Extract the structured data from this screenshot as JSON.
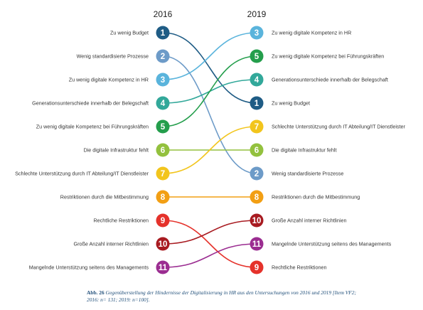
{
  "chart_data": {
    "type": "slope",
    "x": [
      "2016",
      "2019"
    ],
    "colors": {
      "1": "#1f5c85",
      "2": "#6d9bc8",
      "3": "#5ab4dc",
      "4": "#32a89a",
      "5": "#249e4c",
      "6": "#93c13e",
      "7": "#f2c51d",
      "8": "#f29f14",
      "9": "#e5322b",
      "10": "#a81b21",
      "11": "#9b2d91"
    },
    "items": [
      {
        "label": "Zu wenig Budget",
        "rank_2016": 1,
        "rank_2019": 4,
        "color_key": "1"
      },
      {
        "label": "Wenig standardisierte Prozesse",
        "rank_2016": 2,
        "rank_2019": 7,
        "color_key": "2"
      },
      {
        "label": "Zu wenig digitale Kompetenz in HR",
        "rank_2016": 3,
        "rank_2019": 1,
        "color_key": "3"
      },
      {
        "label": "Generationsunterschiede innerhalb der Belegschaft",
        "rank_2016": 4,
        "rank_2019": 3,
        "color_key": "4"
      },
      {
        "label": "Zu wenig digitale Kompetenz bei Führungskräften",
        "rank_2016": 5,
        "rank_2019": 2,
        "color_key": "5"
      },
      {
        "label": "Die digitale Infrastruktur fehlt",
        "rank_2016": 6,
        "rank_2019": 6,
        "color_key": "6"
      },
      {
        "label": "Schlechte Unterstützung durch IT Abteilung/IT Dienstleister",
        "rank_2016": 7,
        "rank_2019": 5,
        "color_key": "7"
      },
      {
        "label": "Restriktionen durch die Mitbestimmung",
        "rank_2016": 8,
        "rank_2019": 8,
        "color_key": "8"
      },
      {
        "label": "Rechtliche Restriktionen",
        "rank_2016": 9,
        "rank_2019": 11,
        "color_key": "9"
      },
      {
        "label": "Große Anzahl interner Richtlinien",
        "rank_2016": 10,
        "rank_2019": 9,
        "color_key": "10"
      },
      {
        "label": "Mangelnde Unterstützung seitens des Managements",
        "rank_2016": 11,
        "rank_2019": 10,
        "color_key": "11"
      }
    ]
  },
  "caption": {
    "label": "Abb. 26",
    "text": "Gegenüberstellung der Hindernisse der Digitalisierung in HR aus den Untersuchungen von 2016 und 2019 [Item VF2; 2016: n= 131; 2019: n=100]."
  }
}
